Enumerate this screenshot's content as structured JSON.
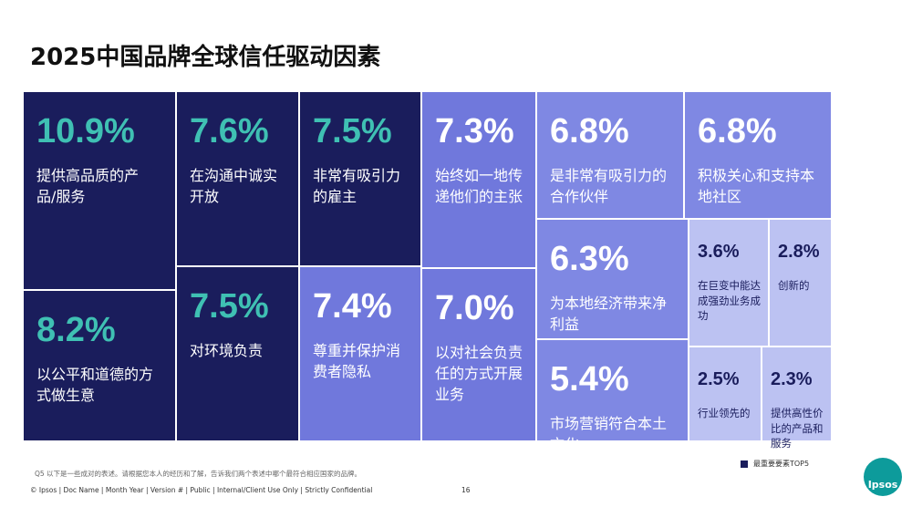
{
  "chart_data": {
    "type": "treemap",
    "title": "2025中国品牌全球信任驱动因素",
    "categories": [
      "提供高品质的产品/服务",
      "在沟通中诚实开放",
      "非常有吸引力的雇主",
      "始终如一地传递他们的主张",
      "是非常有吸引力的合作伙伴",
      "积极关心和支持本地社区",
      "以公平和道德的方式做生意",
      "对环境负责",
      "尊重并保护消费者隐私",
      "以对社会负责任的方式开展业务",
      "为本地经济带来净利益",
      "市场营销符合本土文化",
      "在巨变中能达成强劲业务成功",
      "创新的",
      "行业领先的",
      "提供高性价比的产品和服务"
    ],
    "values": [
      10.9,
      7.6,
      7.5,
      7.3,
      6.8,
      6.8,
      8.2,
      7.5,
      7.4,
      7.0,
      6.3,
      5.4,
      3.6,
      2.8,
      2.5,
      2.3
    ],
    "value_labels": [
      "10.9%",
      "7.6%",
      "7.5%",
      "7.3%",
      "6.8%",
      "6.8%",
      "8.2%",
      "7.5%",
      "7.4%",
      "7.0%",
      "6.3%",
      "5.4%",
      "3.6%",
      "2.8%",
      "2.5%",
      "2.3%"
    ],
    "colors": [
      "#1a1d5c",
      "#1a1d5c",
      "#1a1d5c",
      "#7078dc",
      "#7f88e3",
      "#7f88e3",
      "#1a1d5c",
      "#1a1d5c",
      "#7078dc",
      "#7078dc",
      "#7f88e3",
      "#7f88e3",
      "#bcc2f2",
      "#bcc2f2",
      "#bcc2f2",
      "#bcc2f2"
    ],
    "legend_label": "最重要要素TOP5",
    "legend_color": "#1a1d5c"
  },
  "footnote": "Q5 以下是一些成对的表述。请根据您本人的经历和了解，告诉我们两个表述中哪个最符合相应国家的品牌。",
  "footer": "© Ipsos | Doc Name | Month Year | Version # | Public | Internal/Client Use Only | Strictly Confidential",
  "page_number": "16",
  "logo": "Ipsos"
}
